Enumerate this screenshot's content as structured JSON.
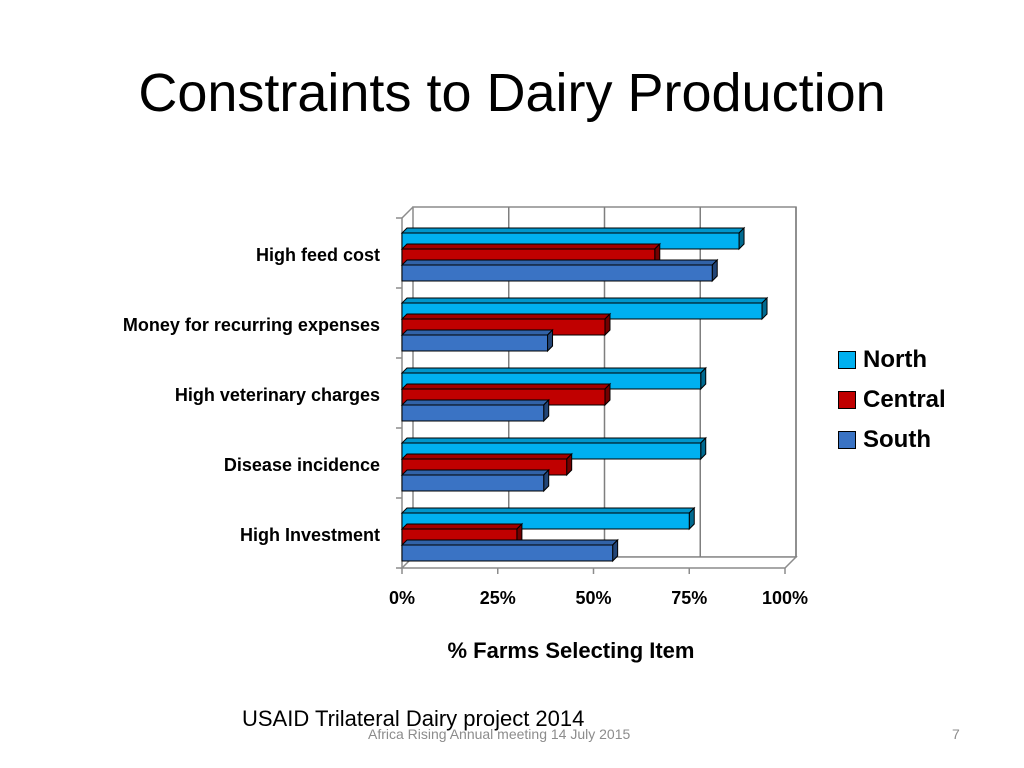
{
  "slide": {
    "title": "Constraints to Dairy Production",
    "source_note": "USAID Trilateral Dairy project 2014",
    "footer": "Africa Rising Annual meeting 14 July 2015",
    "page_number": "7"
  },
  "colors": {
    "north": "#00b0f0",
    "central": "#c00000",
    "south": "#3a73c4"
  },
  "chart_data": {
    "type": "bar",
    "orientation": "horizontal",
    "categories": [
      "High feed cost",
      "Money for recurring expenses",
      "High veterinary charges",
      "Disease incidence",
      "High Investment"
    ],
    "series": [
      {
        "name": "North",
        "values": [
          88,
          94,
          78,
          78,
          75
        ]
      },
      {
        "name": "Central",
        "values": [
          66,
          53,
          53,
          43,
          30
        ]
      },
      {
        "name": "South",
        "values": [
          81,
          38,
          37,
          37,
          55
        ]
      }
    ],
    "xlabel": "% Farms Selecting Item",
    "ylabel": "",
    "x_ticks": [
      "0%",
      "25%",
      "50%",
      "75%",
      "100%"
    ],
    "xlim": [
      0,
      100
    ],
    "grid": true,
    "legend_position": "right"
  }
}
